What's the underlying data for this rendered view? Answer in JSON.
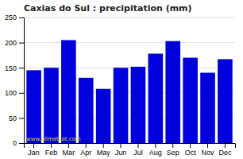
{
  "chart_data": {
    "type": "bar",
    "title": "Caxias do Sul : precipitation (mm)",
    "categories": [
      "Jan",
      "Feb",
      "Mar",
      "Apr",
      "May",
      "Jun",
      "Jul",
      "Aug",
      "Sep",
      "Oct",
      "Nov",
      "Dec"
    ],
    "values": [
      145,
      150,
      205,
      130,
      108,
      150,
      152,
      178,
      203,
      170,
      140,
      167
    ],
    "color": "#0000dd",
    "ylim": [
      0,
      250
    ],
    "yticks": [
      0,
      50,
      100,
      150,
      200,
      250
    ],
    "grid": true,
    "annotations": [
      "www.allmetsat.com"
    ]
  }
}
